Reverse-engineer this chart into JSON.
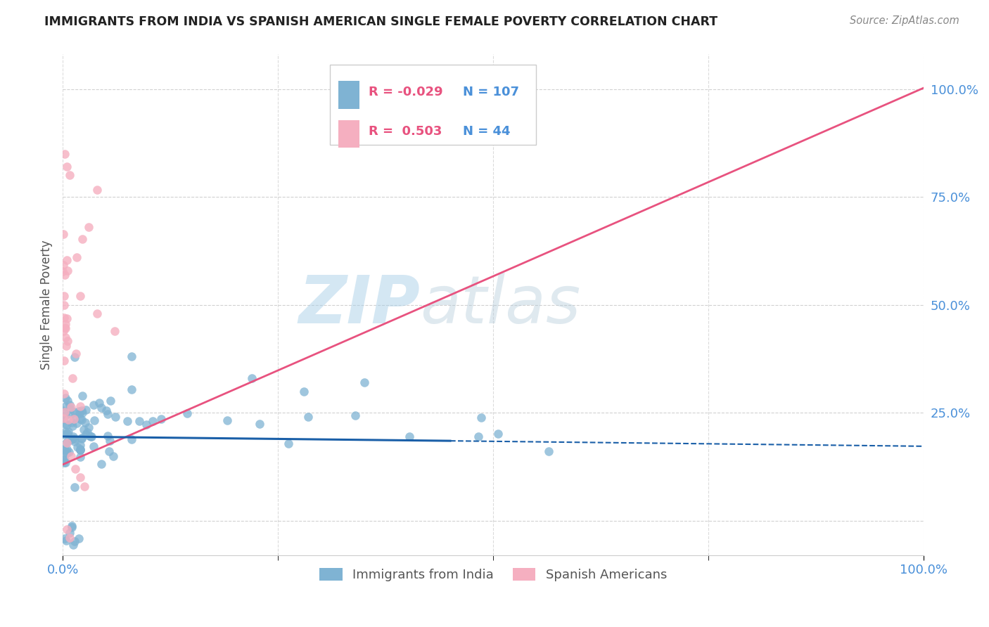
{
  "title": "IMMIGRANTS FROM INDIA VS SPANISH AMERICAN SINGLE FEMALE POVERTY CORRELATION CHART",
  "source": "Source: ZipAtlas.com",
  "ylabel": "Single Female Poverty",
  "legend_label1": "Immigrants from India",
  "legend_label2": "Spanish Americans",
  "R1": -0.029,
  "N1": 107,
  "R2": 0.503,
  "N2": 44,
  "watermark_ZIP": "ZIP",
  "watermark_atlas": "atlas",
  "blue_color": "#7fb3d3",
  "pink_color": "#f5afc0",
  "blue_line_color": "#1a5fa8",
  "pink_line_color": "#e8527f",
  "grid_color": "#cccccc",
  "background_color": "#ffffff",
  "title_color": "#222222",
  "axis_label_color": "#4a90d9",
  "source_color": "#888888",
  "ylabel_color": "#555555",
  "legend_text_color": "#222222",
  "legend_R_color": "#e8527f",
  "legend_N_color": "#4a90d9",
  "xlim": [
    0.0,
    1.0
  ],
  "ylim": [
    -0.08,
    1.08
  ],
  "ytick_positions": [
    0.0,
    0.25,
    0.5,
    0.75,
    1.0
  ],
  "ytick_labels": [
    "",
    "25.0%",
    "50.0%",
    "75.0%",
    "100.0%"
  ],
  "xtick_positions": [
    0.0,
    1.0
  ],
  "xtick_labels": [
    "0.0%",
    "100.0%"
  ]
}
